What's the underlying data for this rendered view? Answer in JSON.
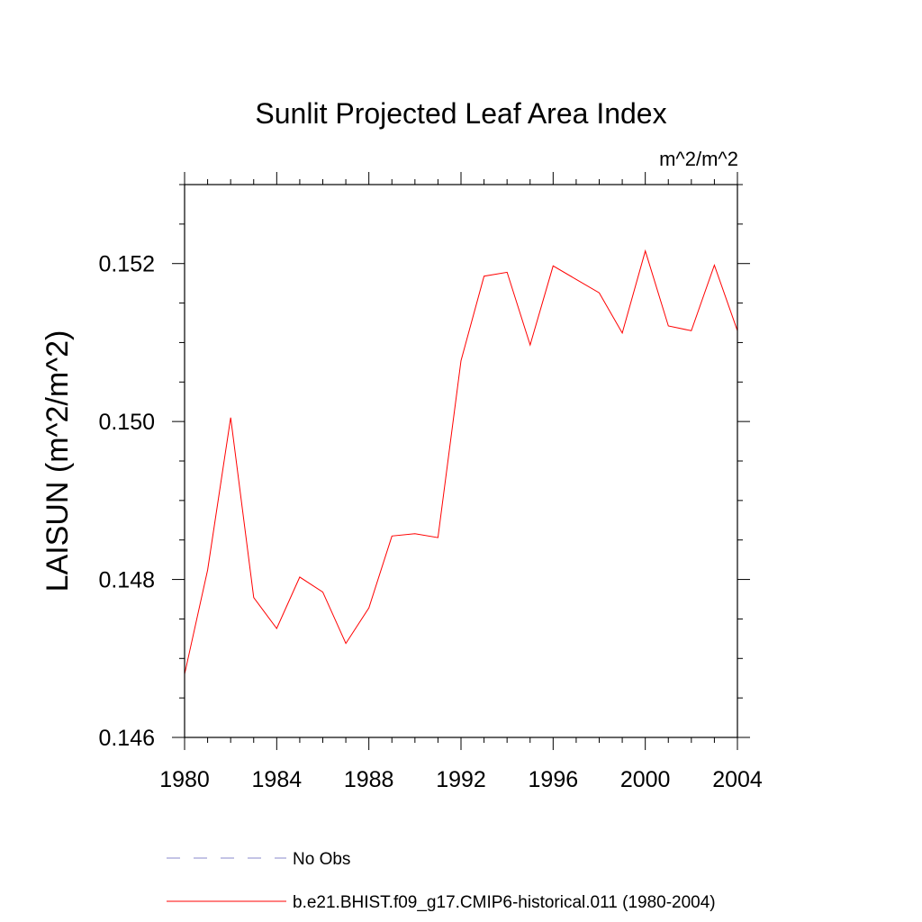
{
  "chart_data": {
    "type": "line",
    "title": "Sunlit Projected Leaf Area Index",
    "units": "m^2/m^2",
    "ylabel": "LAISUN  (m^2/m^2)",
    "xlabel": "",
    "xlim": [
      1980,
      2004
    ],
    "ylim": [
      0.146,
      0.153
    ],
    "x_ticks": [
      "1980",
      "1984",
      "1988",
      "1992",
      "1996",
      "2000",
      "2004"
    ],
    "y_ticks": [
      "0.146",
      "0.148",
      "0.150",
      "0.152"
    ],
    "series": [
      {
        "name": "b.e21.BHIST.f09_g17.CMIP6-historical.011 (1980-2004)",
        "color": "#ff0000",
        "style": "solid",
        "x": [
          1980,
          1981,
          1982,
          1983,
          1984,
          1985,
          1986,
          1987,
          1988,
          1989,
          1990,
          1991,
          1992,
          1993,
          1994,
          1995,
          1996,
          1997,
          1998,
          1999,
          2000,
          2001,
          2002,
          2003,
          2004
        ],
        "y": [
          0.1468,
          0.14812,
          0.15005,
          0.14777,
          0.14738,
          0.14803,
          0.14784,
          0.14719,
          0.14764,
          0.14855,
          0.14858,
          0.14853,
          0.15077,
          0.15184,
          0.15189,
          0.15097,
          0.15197,
          0.1518,
          0.15163,
          0.15112,
          0.15216,
          0.15121,
          0.15115,
          0.15198,
          0.15115
        ]
      }
    ],
    "legend": [
      {
        "label": "No Obs",
        "color": "#8888cc",
        "style": "dashed"
      },
      {
        "label": "b.e21.BHIST.f09_g17.CMIP6-historical.011 (1980-2004)",
        "color": "#ff0000",
        "style": "solid"
      }
    ],
    "legend_position": "bottom",
    "grid": false
  }
}
